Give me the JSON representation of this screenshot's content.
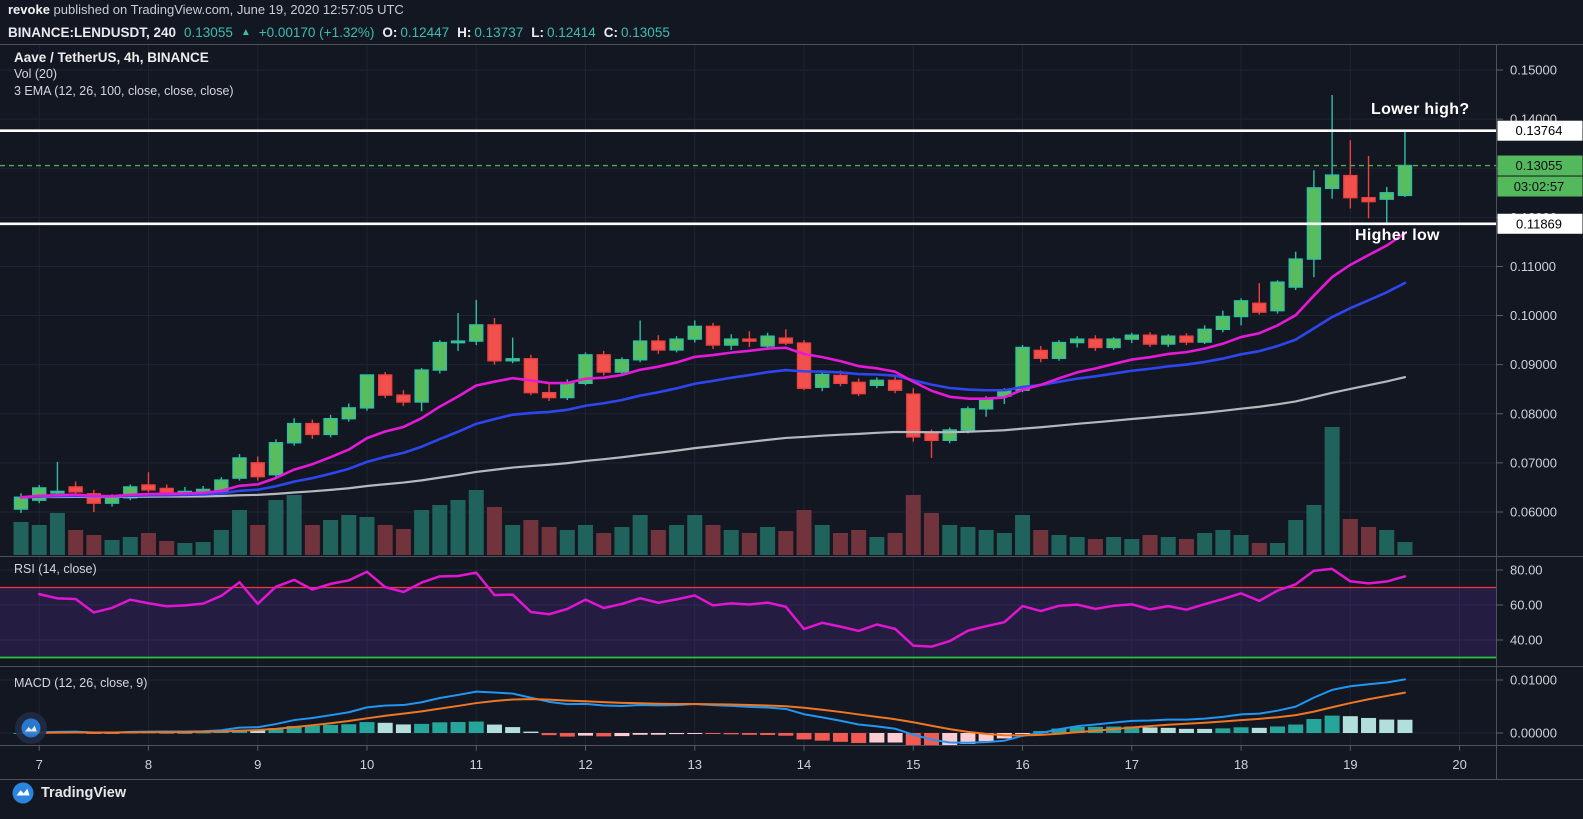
{
  "header": {
    "byline": {
      "author": "revoke",
      "rest": " published on TradingView.com, June 19, 2020 12:57:05 UTC"
    },
    "symbol_bar": {
      "symbol": "BINANCE:LENDUSDT, 240",
      "last": "0.13055",
      "arrow": "▲",
      "change": "+0.00170 (+1.32%)",
      "o_label": "O:",
      "o": "0.12447",
      "h_label": "H:",
      "h": "0.13737",
      "l_label": "L:",
      "l": "0.12414",
      "c_label": "C:",
      "c": "0.13055"
    }
  },
  "legend": {
    "title": "Aave / TetherUS, 4h, BINANCE",
    "vol": "Vol (20)",
    "ema": "3 EMA (12, 26, 100, close, close, close)"
  },
  "panes": {
    "rsi_label": "RSI (14, close)",
    "macd_label": "MACD (12, 26, close, 9)"
  },
  "annotations": [
    {
      "text": "Lower high?",
      "price": 0.13764
    },
    {
      "text": "Higher low",
      "price": 0.11869
    }
  ],
  "price_labels": {
    "resistance": {
      "value": "0.13764",
      "price": 0.13764
    },
    "support": {
      "value": "0.11869",
      "price": 0.11869
    },
    "last": {
      "value": "0.13055",
      "price": 0.13055,
      "countdown": "03:02:57"
    }
  },
  "branding": {
    "name": "TradingView"
  },
  "colors": {
    "background": "#131722",
    "up_body": "#58bd5e",
    "up_border": "#2fbfa4",
    "down_body": "#f1504d",
    "down_border": "#ee423f",
    "ema12": "#e619d8",
    "ema26": "#2e46f0",
    "ema100": "#b6b8bf",
    "vol_up": "#20635c",
    "vol_down": "#71343c",
    "rsi": "#e016d0",
    "rsi_upper_line": "#f23645",
    "rsi_lower_line": "#26c93e",
    "rsi_band": "rgba(139,61,255,0.15)",
    "macd_line": "#2196f3",
    "signal_line": "#ef7622",
    "hist_up": "#26a69a",
    "hist_up_weak": "#b2dfdb",
    "hist_down": "#f25a52",
    "hist_down_weak": "#fbcdd2",
    "accent_teal": "#3dbdb2",
    "label_green": "#54b85c",
    "level_line": "#ffffff",
    "last_price_line": "#4caf50",
    "grid": "#1e2434",
    "separator": "#4d5160",
    "axis_text": "#cfd2d8",
    "tick": "#5c6069"
  },
  "chart_data": {
    "type": "candlestick",
    "title": "Aave / TetherUS, 4h, BINANCE",
    "symbol": "BINANCE:LENDUSDT",
    "interval": "240",
    "y_axis": {
      "ticks": [
        0.15,
        0.14,
        0.13,
        0.12,
        0.11,
        0.1,
        0.09,
        0.08,
        0.07,
        0.06
      ]
    },
    "day_ticks": [
      {
        "label": "7",
        "bar": 1
      },
      {
        "label": "8",
        "bar": 7
      },
      {
        "label": "9",
        "bar": 13
      },
      {
        "label": "10",
        "bar": 19
      },
      {
        "label": "11",
        "bar": 25
      },
      {
        "label": "12",
        "bar": 31
      },
      {
        "label": "13",
        "bar": 37
      },
      {
        "label": "14",
        "bar": 43
      },
      {
        "label": "15",
        "bar": 49
      },
      {
        "label": "16",
        "bar": 55
      },
      {
        "label": "17",
        "bar": 61
      },
      {
        "label": "18",
        "bar": 67
      },
      {
        "label": "19",
        "bar": 73
      },
      {
        "label": "20",
        "bar": 79
      }
    ],
    "rsi": {
      "period": 14,
      "upper": 70,
      "lower": 30,
      "ticks": [
        80,
        60,
        40
      ]
    },
    "macd": {
      "fast": 12,
      "slow": 26,
      "signal": 9,
      "ticks": [
        0.01,
        0.0
      ]
    },
    "ema_periods": [
      12,
      26,
      100
    ],
    "levels": [
      0.13764,
      0.11869
    ],
    "last_price": 0.13055,
    "candles_format": [
      "open",
      "high",
      "low",
      "close",
      "volume_rel"
    ],
    "candles": [
      [
        0.0606,
        0.0638,
        0.0598,
        0.063,
        33
      ],
      [
        0.0624,
        0.0655,
        0.0618,
        0.0649,
        30
      ],
      [
        0.064,
        0.0702,
        0.063,
        0.0642,
        42
      ],
      [
        0.0651,
        0.0662,
        0.0634,
        0.0641,
        25
      ],
      [
        0.0637,
        0.0645,
        0.06,
        0.0618,
        20
      ],
      [
        0.0618,
        0.0636,
        0.0611,
        0.0629,
        15
      ],
      [
        0.0629,
        0.0656,
        0.0624,
        0.0651,
        18
      ],
      [
        0.0655,
        0.0681,
        0.064,
        0.0645,
        22
      ],
      [
        0.0648,
        0.0656,
        0.0632,
        0.064,
        14
      ],
      [
        0.0638,
        0.0651,
        0.063,
        0.0642,
        12
      ],
      [
        0.0641,
        0.0653,
        0.0635,
        0.0646,
        13
      ],
      [
        0.0641,
        0.0671,
        0.0638,
        0.0665,
        25
      ],
      [
        0.0669,
        0.0718,
        0.0664,
        0.071,
        45
      ],
      [
        0.07,
        0.0713,
        0.0664,
        0.0672,
        30
      ],
      [
        0.0676,
        0.0748,
        0.067,
        0.0741,
        55
      ],
      [
        0.0741,
        0.0791,
        0.0735,
        0.078,
        60
      ],
      [
        0.078,
        0.0788,
        0.0749,
        0.0758,
        30
      ],
      [
        0.0758,
        0.0798,
        0.0752,
        0.079,
        35
      ],
      [
        0.079,
        0.0821,
        0.0784,
        0.0812,
        40
      ],
      [
        0.0812,
        0.088,
        0.0806,
        0.0879,
        38
      ],
      [
        0.0879,
        0.0885,
        0.0832,
        0.0838,
        30
      ],
      [
        0.0838,
        0.0848,
        0.0816,
        0.0824,
        26
      ],
      [
        0.0824,
        0.0893,
        0.0805,
        0.0889,
        45
      ],
      [
        0.0889,
        0.095,
        0.0882,
        0.0945,
        50
      ],
      [
        0.0945,
        0.1005,
        0.0928,
        0.0948,
        55
      ],
      [
        0.0948,
        0.1032,
        0.094,
        0.0981,
        65
      ],
      [
        0.0981,
        0.0995,
        0.09,
        0.0908,
        48
      ],
      [
        0.0908,
        0.0955,
        0.0903,
        0.0912,
        30
      ],
      [
        0.0912,
        0.092,
        0.0838,
        0.0843,
        35
      ],
      [
        0.0843,
        0.0862,
        0.0826,
        0.0833,
        28
      ],
      [
        0.0833,
        0.087,
        0.0828,
        0.0862,
        25
      ],
      [
        0.0862,
        0.0925,
        0.0858,
        0.092,
        30
      ],
      [
        0.092,
        0.0928,
        0.0878,
        0.0885,
        22
      ],
      [
        0.0885,
        0.0915,
        0.088,
        0.091,
        28
      ],
      [
        0.091,
        0.099,
        0.0905,
        0.0948,
        40
      ],
      [
        0.0948,
        0.096,
        0.0922,
        0.093,
        25
      ],
      [
        0.093,
        0.0958,
        0.0925,
        0.0952,
        30
      ],
      [
        0.0952,
        0.099,
        0.0945,
        0.0978,
        40
      ],
      [
        0.0978,
        0.0985,
        0.0932,
        0.094,
        30
      ],
      [
        0.094,
        0.0962,
        0.093,
        0.0952,
        25
      ],
      [
        0.0952,
        0.0968,
        0.0936,
        0.0948,
        22
      ],
      [
        0.0938,
        0.0965,
        0.093,
        0.0958,
        28
      ],
      [
        0.0954,
        0.0972,
        0.094,
        0.0944,
        24
      ],
      [
        0.0944,
        0.095,
        0.0848,
        0.0852,
        45
      ],
      [
        0.0854,
        0.0884,
        0.0846,
        0.088,
        30
      ],
      [
        0.0878,
        0.0888,
        0.0856,
        0.0862,
        22
      ],
      [
        0.0864,
        0.0872,
        0.0836,
        0.0841,
        25
      ],
      [
        0.0858,
        0.0874,
        0.0852,
        0.0868,
        18
      ],
      [
        0.0868,
        0.0875,
        0.0842,
        0.0848,
        22
      ],
      [
        0.084,
        0.0852,
        0.0743,
        0.0753,
        60
      ],
      [
        0.076,
        0.0768,
        0.071,
        0.0746,
        42
      ],
      [
        0.0746,
        0.0772,
        0.074,
        0.0767,
        30
      ],
      [
        0.0767,
        0.0815,
        0.076,
        0.081,
        28
      ],
      [
        0.081,
        0.0836,
        0.0794,
        0.083,
        25
      ],
      [
        0.0836,
        0.0852,
        0.082,
        0.0848,
        22
      ],
      [
        0.0848,
        0.094,
        0.0844,
        0.0935,
        40
      ],
      [
        0.0929,
        0.0938,
        0.0905,
        0.0913,
        25
      ],
      [
        0.0913,
        0.095,
        0.0908,
        0.0945,
        20
      ],
      [
        0.0945,
        0.0958,
        0.0935,
        0.0952,
        18
      ],
      [
        0.0952,
        0.096,
        0.0928,
        0.0935,
        16
      ],
      [
        0.0935,
        0.0956,
        0.093,
        0.0952,
        18
      ],
      [
        0.0952,
        0.0965,
        0.0944,
        0.096,
        16
      ],
      [
        0.096,
        0.0966,
        0.0936,
        0.0942,
        20
      ],
      [
        0.0942,
        0.0962,
        0.0936,
        0.0958,
        18
      ],
      [
        0.0958,
        0.0964,
        0.094,
        0.0946,
        16
      ],
      [
        0.0946,
        0.098,
        0.0942,
        0.0972,
        22
      ],
      [
        0.0972,
        0.101,
        0.0966,
        0.0998,
        25
      ],
      [
        0.0998,
        0.1035,
        0.098,
        0.103,
        20
      ],
      [
        0.1025,
        0.1066,
        0.1002,
        0.1007,
        12
      ],
      [
        0.101,
        0.1072,
        0.1004,
        0.1068,
        12
      ],
      [
        0.1058,
        0.113,
        0.1052,
        0.1115,
        35
      ],
      [
        0.1115,
        0.1296,
        0.1078,
        0.126,
        50
      ],
      [
        0.1259,
        0.1449,
        0.1238,
        0.1286,
        128
      ],
      [
        0.1285,
        0.1357,
        0.1218,
        0.124,
        36
      ],
      [
        0.124,
        0.1325,
        0.1198,
        0.1232,
        28
      ],
      [
        0.1237,
        0.1262,
        0.1184,
        0.125,
        25
      ],
      [
        0.12447,
        0.13737,
        0.12414,
        0.13055,
        13
      ]
    ]
  }
}
